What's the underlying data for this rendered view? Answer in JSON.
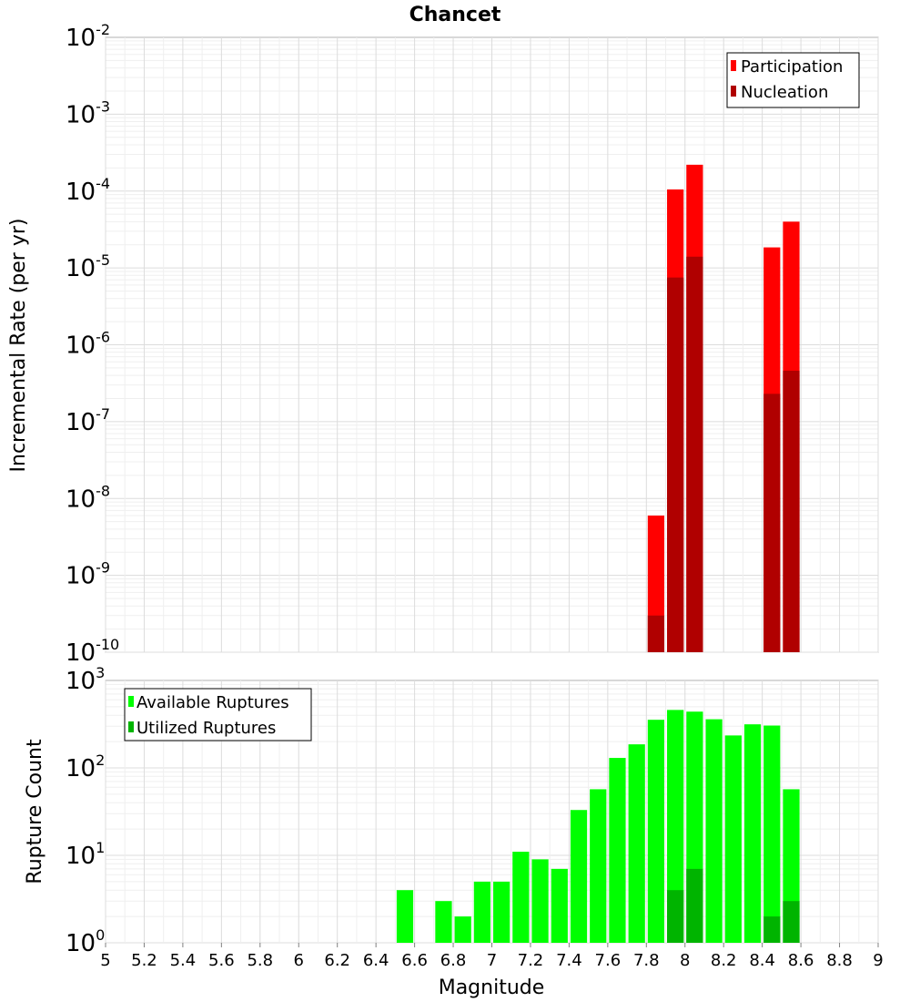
{
  "chart_data": [
    {
      "type": "bar",
      "title": "Chancet",
      "ylabel": "Incremental Rate (per yr)",
      "xlabel": "",
      "yscale": "log",
      "xlim": [
        5,
        9
      ],
      "ylim": [
        1e-10,
        0.01
      ],
      "grid": true,
      "legend_position": "top-right",
      "bin_width": 0.1,
      "y_tick_exponents": [
        -10,
        -9,
        -8,
        -7,
        -6,
        -5,
        -4,
        -3,
        -2
      ],
      "series": [
        {
          "name": "Participation",
          "color": "#ff0000",
          "x": [
            7.85,
            7.95,
            8.05,
            8.45,
            8.55
          ],
          "values": [
            6e-09,
            0.000105,
            0.00022,
            1.85e-05,
            4e-05
          ]
        },
        {
          "name": "Nucleation",
          "color": "#b00000",
          "x": [
            7.85,
            7.95,
            8.05,
            8.45,
            8.55
          ],
          "values": [
            3e-10,
            7.5e-06,
            1.4e-05,
            2.3e-07,
            4.6e-07
          ]
        }
      ]
    },
    {
      "type": "bar",
      "title": "",
      "ylabel": "Rupture Count",
      "xlabel": "Magnitude",
      "yscale": "log",
      "xlim": [
        5,
        9
      ],
      "ylim": [
        1,
        1000
      ],
      "grid": true,
      "legend_position": "top-left",
      "bin_width": 0.1,
      "y_tick_exponents": [
        0,
        1,
        2,
        3
      ],
      "x_ticks": [
        "5",
        "5.2",
        "5.4",
        "5.6",
        "5.8",
        "6",
        "6.2",
        "6.4",
        "6.6",
        "6.8",
        "7",
        "7.2",
        "7.4",
        "7.6",
        "7.8",
        "8",
        "8.2",
        "8.4",
        "8.6",
        "8.8",
        "9"
      ],
      "series": [
        {
          "name": "Available Ruptures",
          "color": "#00ff00",
          "x": [
            6.55,
            6.75,
            6.85,
            6.95,
            7.05,
            7.15,
            7.25,
            7.35,
            7.45,
            7.55,
            7.65,
            7.75,
            7.85,
            7.95,
            8.05,
            8.15,
            8.25,
            8.35,
            8.45,
            8.55
          ],
          "values": [
            4,
            3,
            2,
            5,
            5,
            11,
            9,
            7,
            33,
            57,
            130,
            186,
            355,
            460,
            440,
            360,
            235,
            315,
            305,
            57
          ]
        },
        {
          "name": "Utilized Ruptures",
          "color": "#00b400",
          "x": [
            7.85,
            7.95,
            8.05,
            8.45,
            8.55
          ],
          "values": [
            1,
            4,
            7,
            2,
            3
          ]
        }
      ]
    }
  ]
}
